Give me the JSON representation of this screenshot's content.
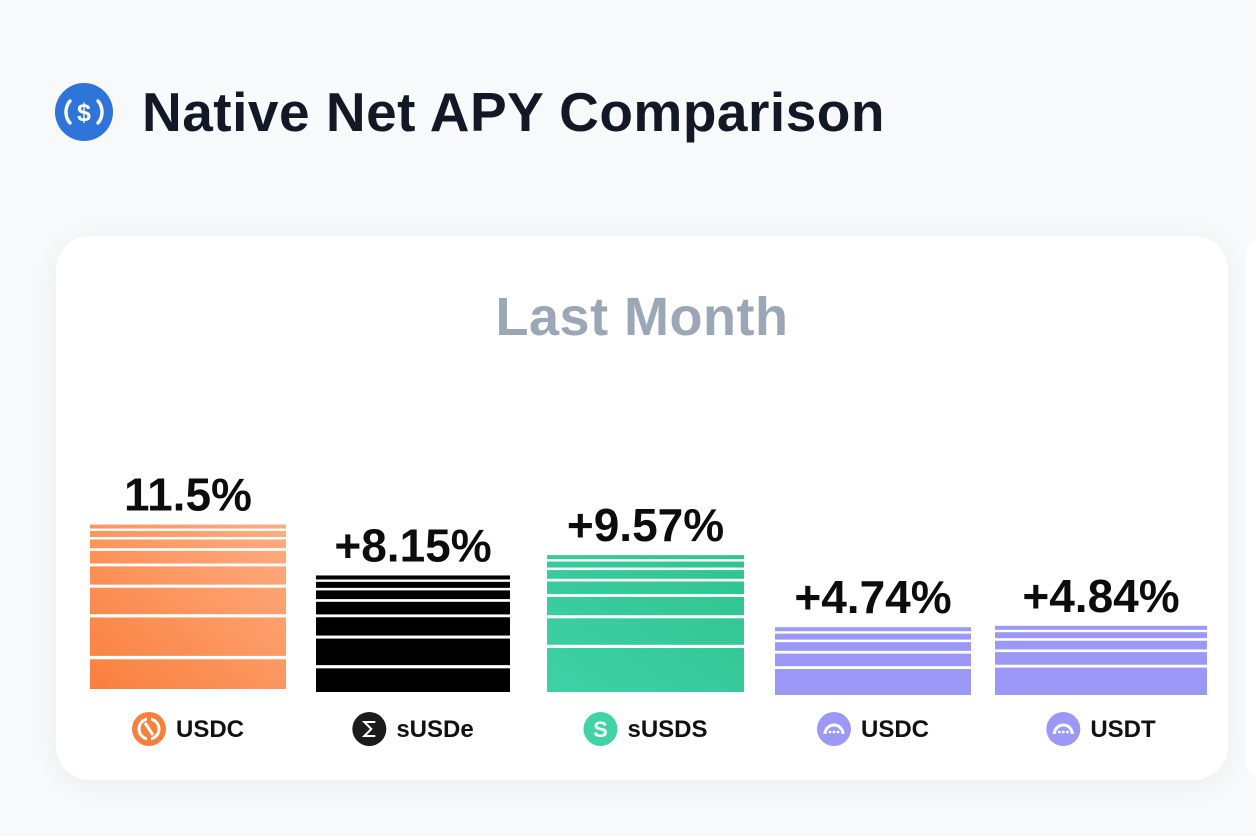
{
  "header": {
    "title": "Native Net APY Comparison",
    "icon": "usdc-coin-icon",
    "icon_color": "#2f74d9"
  },
  "chart_data": {
    "type": "bar",
    "title": "Last Month",
    "categories": [
      "USDC",
      "sUSDe",
      "sUSDS",
      "USDC",
      "USDT"
    ],
    "values": [
      11.5,
      8.15,
      9.57,
      4.74,
      4.84
    ],
    "value_labels": [
      "11.5%",
      "+8.15%",
      "+9.57%",
      "+4.74%",
      "+4.84%"
    ],
    "unit": "%",
    "series": [
      {
        "category": "USDC",
        "icon": "usdc-orange-token-icon",
        "color": "#f97f3c"
      },
      {
        "category": "sUSDe",
        "icon": "ethena-susde-token-icon",
        "color": "#000000"
      },
      {
        "category": "sUSDS",
        "icon": "sky-susds-token-icon",
        "color": "#34c997"
      },
      {
        "category": "USDC",
        "icon": "purple-protocol-token-icon",
        "color": "#9b98f7"
      },
      {
        "category": "USDT",
        "icon": "purple-protocol-token-icon",
        "color": "#9b98f7"
      }
    ],
    "grid": false,
    "legend": "none"
  }
}
